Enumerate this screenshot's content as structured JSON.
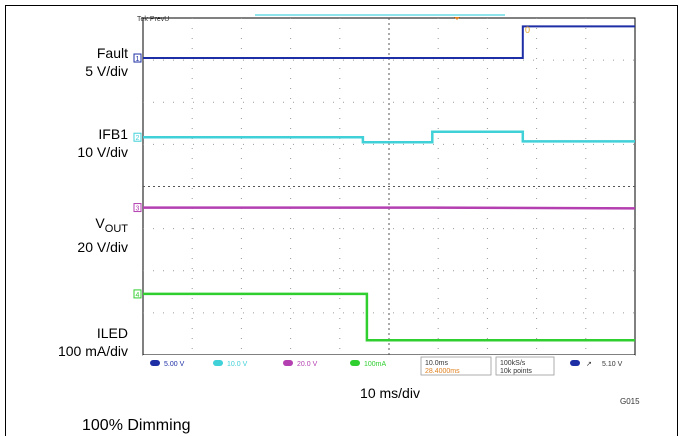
{
  "traces": [
    {
      "label": "Fault",
      "scale": "5 V/div",
      "color": "#1e2fa6",
      "marker": "1"
    },
    {
      "label": "IFB1",
      "scale": "10 V/div",
      "color": "#3fd0d8",
      "marker": "2"
    },
    {
      "label": "V",
      "label_sub": "OUT",
      "scale": "20 V/div",
      "color": "#b43fb0",
      "marker": "3"
    },
    {
      "label": "ILED",
      "scale": "100 mA/div",
      "color": "#2fcf2f",
      "marker": "4"
    }
  ],
  "scope": {
    "top_text": "Tek PrevU",
    "trigger_marker": "0",
    "status": {
      "ch1": "5.00 V",
      "ch2": "10.0 V",
      "ch3": "20.0 V",
      "ch4": "100mA",
      "timebase": "10.0ms",
      "trigger_pos": "28.4000ms",
      "sample_rate": "100kS/s",
      "points": "10k points",
      "trigger_level": "5.10 V"
    }
  },
  "chart_data": {
    "type": "line",
    "title": "",
    "xlabel": "10 ms/div",
    "ylabel": "",
    "x_divisions": 10,
    "y_divisions": 8,
    "grid": true,
    "x_unit": "div",
    "series": [
      {
        "name": "Fault",
        "color": "#1e2fa6",
        "points": [
          [
            0,
            7.05
          ],
          [
            7.72,
            7.05
          ],
          [
            7.72,
            7.8
          ],
          [
            10,
            7.8
          ]
        ]
      },
      {
        "name": "IFB1",
        "color": "#3fd0d8",
        "points": [
          [
            0,
            5.17
          ],
          [
            4.47,
            5.17
          ],
          [
            4.47,
            5.05
          ],
          [
            5.88,
            5.05
          ],
          [
            5.88,
            5.3
          ],
          [
            7.72,
            5.3
          ],
          [
            7.72,
            5.07
          ],
          [
            10,
            5.07
          ]
        ]
      },
      {
        "name": "VOUT",
        "color": "#b43fb0",
        "points": [
          [
            0,
            3.5
          ],
          [
            5.88,
            3.5
          ],
          [
            10,
            3.48
          ]
        ]
      },
      {
        "name": "ILED",
        "color": "#2fcf2f",
        "points": [
          [
            0,
            1.45
          ],
          [
            4.55,
            1.45
          ],
          [
            4.55,
            0.35
          ],
          [
            10,
            0.35
          ]
        ]
      }
    ]
  },
  "xlabel": "10 ms/div",
  "fig_id": "G015",
  "caption": "100% Dimming"
}
